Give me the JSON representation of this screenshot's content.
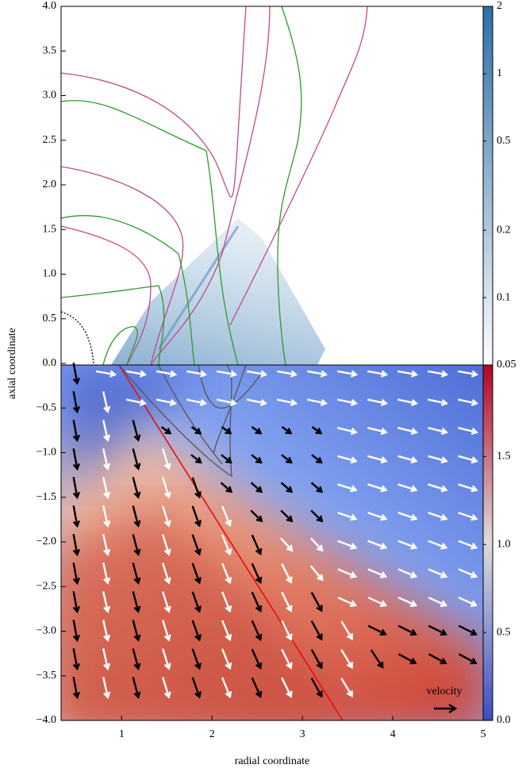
{
  "chart_data": {
    "type": "heatmap",
    "xlabel": "radial coordinate",
    "ylabel": "axial coordinate",
    "xlim": [
      0.33,
      5
    ],
    "ylim": [
      -4,
      4
    ],
    "xticks": [
      1,
      2,
      3,
      4,
      5
    ],
    "yticks": [
      {
        "value": 4,
        "label": "4.0"
      },
      {
        "value": 3.5,
        "label": "3.5"
      },
      {
        "value": 3,
        "label": "3.0"
      },
      {
        "value": 2.5,
        "label": "2.5"
      },
      {
        "value": 2,
        "label": "2.0"
      },
      {
        "value": 1.5,
        "label": "1.5"
      },
      {
        "value": 1,
        "label": "1.0"
      },
      {
        "value": 0.5,
        "label": "0.5"
      },
      {
        "value": 0,
        "label": "0.0"
      },
      {
        "value": -0.5,
        "label": "−0.5"
      },
      {
        "value": -1,
        "label": "−1.0"
      },
      {
        "value": -1.5,
        "label": "−1.5"
      },
      {
        "value": -2,
        "label": "−2.0"
      },
      {
        "value": -2.5,
        "label": "−2.5"
      },
      {
        "value": -3,
        "label": "−3.0"
      },
      {
        "value": -3.5,
        "label": "−3.5"
      },
      {
        "value": -4,
        "label": "−4.0"
      }
    ],
    "colorbars": [
      {
        "scale": "log",
        "lim": [
          0.05,
          2
        ],
        "ticks": [
          2,
          1,
          0.5,
          0.2,
          0.1,
          0.05
        ],
        "colors": [
          "#ffffff",
          "#2e6fa8"
        ]
      },
      {
        "scale": "linear",
        "lim": [
          0,
          2.02
        ],
        "ticks": [
          {
            "value": 0,
            "label": "0.0"
          },
          {
            "value": 0.5,
            "label": "0.5"
          },
          {
            "value": 1,
            "label": "1.0"
          },
          {
            "value": 1.5,
            "label": "1.5"
          }
        ],
        "colors": [
          "#3a4cc0",
          "#dddddd",
          "#b40426"
        ]
      }
    ],
    "annotation": "velocity"
  }
}
